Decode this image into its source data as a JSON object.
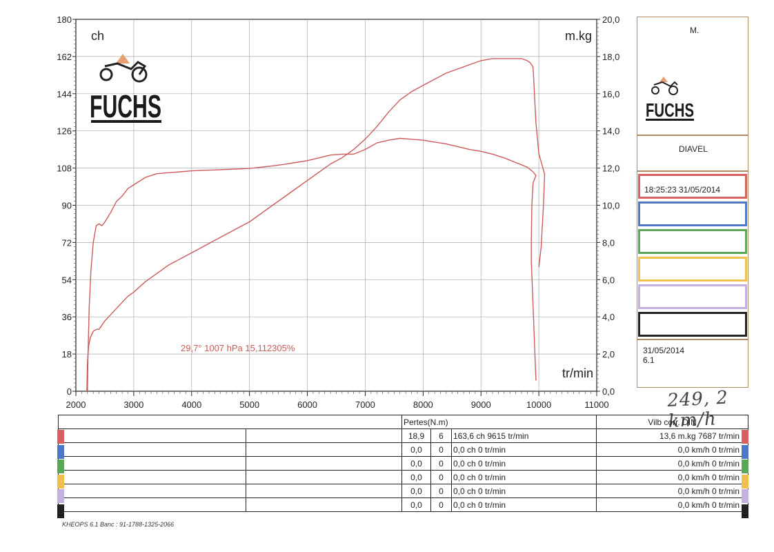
{
  "chart_data": {
    "type": "line",
    "x_range": [
      2000,
      11000
    ],
    "x_ticks": [
      "2000",
      "3000",
      "4000",
      "5000",
      "6000",
      "7000",
      "8000",
      "9000",
      "10000",
      "11000"
    ],
    "y_left_range": [
      0,
      180
    ],
    "y_left_ticks": [
      "0",
      "18",
      "36",
      "54",
      "72",
      "90",
      "108",
      "126",
      "144",
      "162",
      "180"
    ],
    "y_right_range": [
      0,
      20
    ],
    "y_right_ticks": [
      "0,0",
      "2,0",
      "4,0",
      "6,0",
      "8,0",
      "10,0",
      "12,0",
      "14,0",
      "16,0",
      "18,0",
      "20,0"
    ],
    "y_left_unit": "ch",
    "y_right_unit": "m.kg",
    "x_unit": "tr/min",
    "grid": true,
    "annotation": "29,7°  1007 hPa  15,112305%",
    "series": [
      {
        "axis": "left",
        "color": "#cc5a5a",
        "x": [
          2190,
          2200,
          2220,
          2250,
          2300,
          2360,
          2400,
          2450,
          2500,
          2600,
          2700,
          2800,
          2900,
          3000,
          3200,
          3400,
          3600,
          3800,
          4000,
          4200,
          4400,
          4600,
          4800,
          5000,
          5200,
          5400,
          5600,
          5800,
          6000,
          6200,
          6400,
          6600,
          6800,
          7000,
          7200,
          7400,
          7600,
          7800,
          8000,
          8200,
          8400,
          8600,
          8800,
          9000,
          9200,
          9400,
          9600,
          9700,
          9800,
          9850,
          9900,
          9950,
          10000,
          10050,
          10100,
          10080,
          10040,
          10000
        ],
        "y": [
          0,
          14,
          22,
          26,
          29,
          30,
          30,
          32,
          34,
          37,
          40,
          43,
          46,
          48,
          53,
          57,
          61,
          64,
          67,
          70,
          73,
          76,
          79,
          82,
          86,
          90,
          94,
          98,
          102,
          106,
          110,
          113,
          117,
          122,
          128,
          135,
          141,
          145,
          148,
          151,
          154,
          156,
          158,
          160,
          161,
          161,
          161,
          161,
          160,
          159,
          157,
          130,
          115,
          110,
          105,
          90,
          70,
          60
        ]
      },
      {
        "axis": "right",
        "color": "#cc5a5a",
        "x": [
          2200,
          2210,
          2230,
          2260,
          2300,
          2350,
          2400,
          2450,
          2500,
          2600,
          2700,
          2800,
          2900,
          3000,
          3200,
          3400,
          3600,
          3800,
          4000,
          4200,
          4400,
          4600,
          4800,
          5000,
          5200,
          5400,
          5600,
          5800,
          6000,
          6200,
          6400,
          6600,
          6800,
          7000,
          7200,
          7400,
          7600,
          7800,
          8000,
          8200,
          8400,
          8600,
          8800,
          9000,
          9200,
          9400,
          9600,
          9800,
          9900,
          9950,
          9900,
          9880,
          9870,
          9870,
          9950,
          9960
        ],
        "y": [
          0,
          2,
          4.5,
          6.5,
          8,
          8.9,
          9.0,
          8.9,
          9.1,
          9.6,
          10.2,
          10.5,
          10.9,
          11.1,
          11.5,
          11.7,
          11.75,
          11.8,
          11.85,
          11.88,
          11.9,
          11.93,
          11.95,
          11.98,
          12.05,
          12.12,
          12.2,
          12.3,
          12.4,
          12.55,
          12.7,
          12.75,
          12.75,
          13.0,
          13.35,
          13.5,
          13.6,
          13.55,
          13.5,
          13.4,
          13.3,
          13.15,
          13.0,
          12.9,
          12.75,
          12.55,
          12.3,
          12.05,
          11.8,
          11.6,
          11.2,
          10.0,
          8.0,
          7.0,
          0.6,
          0.6
        ]
      }
    ]
  },
  "panel": {
    "operator": "M.",
    "logo_text": "FUCHS",
    "model": "DIAVEL",
    "slot1": "18:25:23  31/05/2014",
    "date": "31/05/2014",
    "version": "6.1",
    "handwritten": "249, 2 km/h",
    "slot_colors": [
      "#d96060",
      "#4f77c8",
      "#58a858",
      "#f0c050",
      "#c4b0e0",
      "#222222"
    ]
  },
  "table": {
    "pertes": "Pertes(N.m)",
    "vilb": "Vilb corr. DIN",
    "rows": [
      {
        "a": "18,9",
        "b": "6",
        "c": "163,6 ch 9615 tr/min",
        "d": "13,6 m.kg 7687 tr/min",
        "color": "#d96060"
      },
      {
        "a": "0,0",
        "b": "0",
        "c": "0,0 ch 0 tr/min",
        "d": "0,0 km/h 0 tr/min",
        "color": "#4f77c8"
      },
      {
        "a": "0,0",
        "b": "0",
        "c": "0,0 ch 0 tr/min",
        "d": "0,0 km/h 0 tr/min",
        "color": "#58a858"
      },
      {
        "a": "0,0",
        "b": "0",
        "c": "0,0 ch 0 tr/min",
        "d": "0,0 km/h 0 tr/min",
        "color": "#f0c050"
      },
      {
        "a": "0,0",
        "b": "0",
        "c": "0,0 ch 0 tr/min",
        "d": "0,0 km/h 0 tr/min",
        "color": "#c4b0e0"
      },
      {
        "a": "0,0",
        "b": "0",
        "c": "0,0 ch 0 tr/min",
        "d": "0,0 km/h 0 tr/min",
        "color": "#222222"
      }
    ]
  },
  "footer": "KHEOPS 6.1  Banc : 91-1788-1325-2066"
}
